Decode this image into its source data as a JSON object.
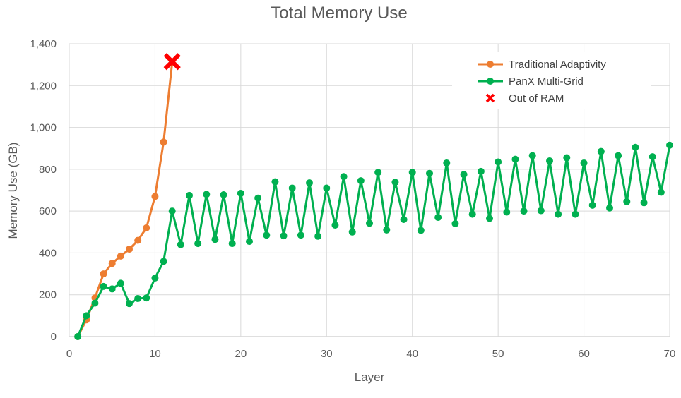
{
  "chart_data": {
    "type": "line",
    "title": "Total Memory Use",
    "xlabel": "Layer",
    "ylabel": "Memory Use (GB)",
    "xlim": [
      0,
      70
    ],
    "ylim": [
      0,
      1400
    ],
    "x_ticks": [
      0,
      10,
      20,
      30,
      40,
      50,
      60,
      70
    ],
    "y_ticks": [
      0,
      200,
      400,
      600,
      800,
      1000,
      1200,
      1400
    ],
    "y_tick_labels": [
      "0",
      "200",
      "400",
      "600",
      "800",
      "1,000",
      "1,200",
      "1,400"
    ],
    "grid": "major x and y",
    "legend_position": "top-right",
    "series": [
      {
        "name": "Traditional Adaptivity",
        "color": "#ED7D31",
        "x": [
          1,
          2,
          3,
          4,
          5,
          6,
          7,
          8,
          9,
          10,
          11,
          12
        ],
        "values": [
          0,
          80,
          185,
          300,
          350,
          385,
          418,
          460,
          520,
          670,
          930,
          1310
        ]
      },
      {
        "name": "PanX Multi-Grid",
        "color": "#00B050",
        "x": [
          1,
          2,
          3,
          4,
          5,
          6,
          7,
          8,
          9,
          10,
          11,
          12,
          13,
          14,
          15,
          16,
          17,
          18,
          19,
          20,
          21,
          22,
          23,
          24,
          25,
          26,
          27,
          28,
          29,
          30,
          31,
          32,
          33,
          34,
          35,
          36,
          37,
          38,
          39,
          40,
          41,
          42,
          43,
          44,
          45,
          46,
          47,
          48,
          49,
          50,
          51,
          52,
          53,
          54,
          55,
          56,
          57,
          58,
          59,
          60,
          61,
          62,
          63,
          64,
          65,
          66,
          67,
          68,
          69,
          70
        ],
        "values": [
          0,
          100,
          160,
          240,
          228,
          255,
          158,
          182,
          185,
          280,
          360,
          600,
          440,
          675,
          445,
          680,
          465,
          678,
          445,
          685,
          455,
          662,
          485,
          740,
          482,
          710,
          485,
          735,
          480,
          710,
          533,
          765,
          500,
          745,
          542,
          785,
          510,
          738,
          560,
          785,
          508,
          780,
          570,
          830,
          540,
          775,
          585,
          790,
          565,
          835,
          595,
          848,
          600,
          865,
          602,
          840,
          585,
          855,
          585,
          830,
          628,
          885,
          615,
          865,
          645,
          905,
          640,
          860,
          690,
          915
        ]
      },
      {
        "name": "Out of RAM",
        "color": "#FF0000",
        "marker": "x",
        "x": [
          12
        ],
        "values": [
          1315
        ]
      }
    ]
  }
}
